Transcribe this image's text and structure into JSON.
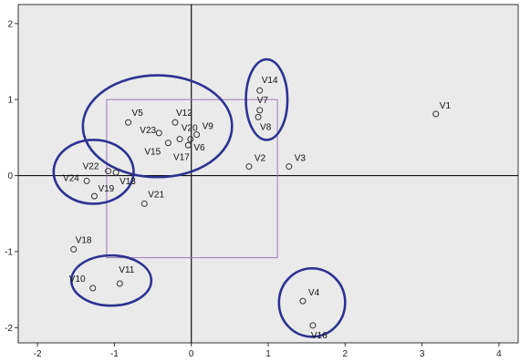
{
  "chart_data": {
    "type": "scatter",
    "title": "",
    "xlabel": "",
    "ylabel": "",
    "xlim": [
      -2.25,
      4.25
    ],
    "ylim": [
      -2.2,
      2.25
    ],
    "xticks": [
      -2,
      -1,
      0,
      1,
      2,
      3,
      4
    ],
    "yticks": [
      -2,
      -1,
      0,
      1,
      2
    ],
    "xtick_labels": [
      "-2",
      "-1",
      "0",
      "1",
      "2",
      "3",
      "4"
    ],
    "ytick_labels": [
      "-2",
      "-1",
      "0",
      "1",
      "2"
    ],
    "grid": false,
    "background_color": "#eaeaea",
    "marker_color": "#333333",
    "circle_color": "#2e3192",
    "box_color": "#9a7ab5",
    "points": [
      {
        "label": "V1",
        "x": 3.18,
        "y": 0.81
      },
      {
        "label": "V2",
        "x": 0.75,
        "y": 0.12
      },
      {
        "label": "V3",
        "x": 1.27,
        "y": 0.12
      },
      {
        "label": "V4",
        "x": 1.45,
        "y": -1.65
      },
      {
        "label": "V5",
        "x": -0.82,
        "y": 0.7
      },
      {
        "label": "V6",
        "x": -0.04,
        "y": 0.4
      },
      {
        "label": "V7",
        "x": 0.89,
        "y": 0.86
      },
      {
        "label": "V8",
        "x": 0.87,
        "y": 0.77
      },
      {
        "label": "V9",
        "x": 0.07,
        "y": 0.54
      },
      {
        "label": "V10",
        "x": -1.28,
        "y": -1.48
      },
      {
        "label": "V11",
        "x": -0.93,
        "y": -1.42
      },
      {
        "label": "V12",
        "x": -0.21,
        "y": 0.7
      },
      {
        "label": "V13",
        "x": -0.98,
        "y": 0.04
      },
      {
        "label": "V14",
        "x": 0.89,
        "y": 1.12
      },
      {
        "label": "V15",
        "x": -0.3,
        "y": 0.43
      },
      {
        "label": "V16",
        "x": 1.58,
        "y": -1.97
      },
      {
        "label": "V17",
        "x": -0.15,
        "y": 0.48
      },
      {
        "label": "V18",
        "x": -1.53,
        "y": -0.97
      },
      {
        "label": "V19",
        "x": -1.26,
        "y": -0.27
      },
      {
        "label": "V20",
        "x": -0.01,
        "y": 0.48
      },
      {
        "label": "V21",
        "x": -0.61,
        "y": -0.37
      },
      {
        "label": "V22",
        "x": -1.08,
        "y": 0.06
      },
      {
        "label": "V23",
        "x": -0.42,
        "y": 0.56
      },
      {
        "label": "V24",
        "x": -1.36,
        "y": -0.07
      }
    ],
    "label_offsets": {
      "V1": [
        4,
        -6
      ],
      "V2": [
        6,
        -6
      ],
      "V3": [
        6,
        -6
      ],
      "V4": [
        6,
        -6
      ],
      "V5": [
        4,
        -7
      ],
      "V6": [
        6,
        6
      ],
      "V7": [
        -3,
        -8
      ],
      "V8": [
        2,
        14
      ],
      "V9": [
        6,
        -6
      ],
      "V10": [
        -26,
        -7
      ],
      "V11": [
        -1,
        -12
      ],
      "V12": [
        1,
        -7
      ],
      "V13": [
        4,
        13
      ],
      "V14": [
        2,
        -8
      ],
      "V15": [
        -26,
        13
      ],
      "V16": [
        -2,
        14
      ],
      "V17": [
        -7,
        23
      ],
      "V18": [
        2,
        -7
      ],
      "V19": [
        4,
        -5
      ],
      "V20": [
        -10,
        -9
      ],
      "V21": [
        4,
        -7
      ],
      "V22": [
        -28,
        -2
      ],
      "V23": [
        -21,
        0
      ],
      "V24": [
        -26,
        0
      ]
    },
    "ellipses": [
      {
        "name": "cluster-top-center",
        "cx": -0.44,
        "cy": 0.65,
        "rx": 0.97,
        "ry": 0.67
      },
      {
        "name": "cluster-left",
        "cx": -1.27,
        "cy": 0.05,
        "rx": 0.52,
        "ry": 0.42
      },
      {
        "name": "cluster-top-right",
        "cx": 0.98,
        "cy": 1.0,
        "rx": 0.27,
        "ry": 0.53
      },
      {
        "name": "cluster-bottom-left",
        "cx": -1.04,
        "cy": -1.38,
        "rx": 0.52,
        "ry": 0.33
      },
      {
        "name": "cluster-bottom-right",
        "cx": 1.57,
        "cy": -1.67,
        "rx": 0.43,
        "ry": 0.45
      }
    ],
    "box": {
      "x0": -1.1,
      "x1": 1.12,
      "y0": -1.08,
      "y1": 1.0
    }
  }
}
